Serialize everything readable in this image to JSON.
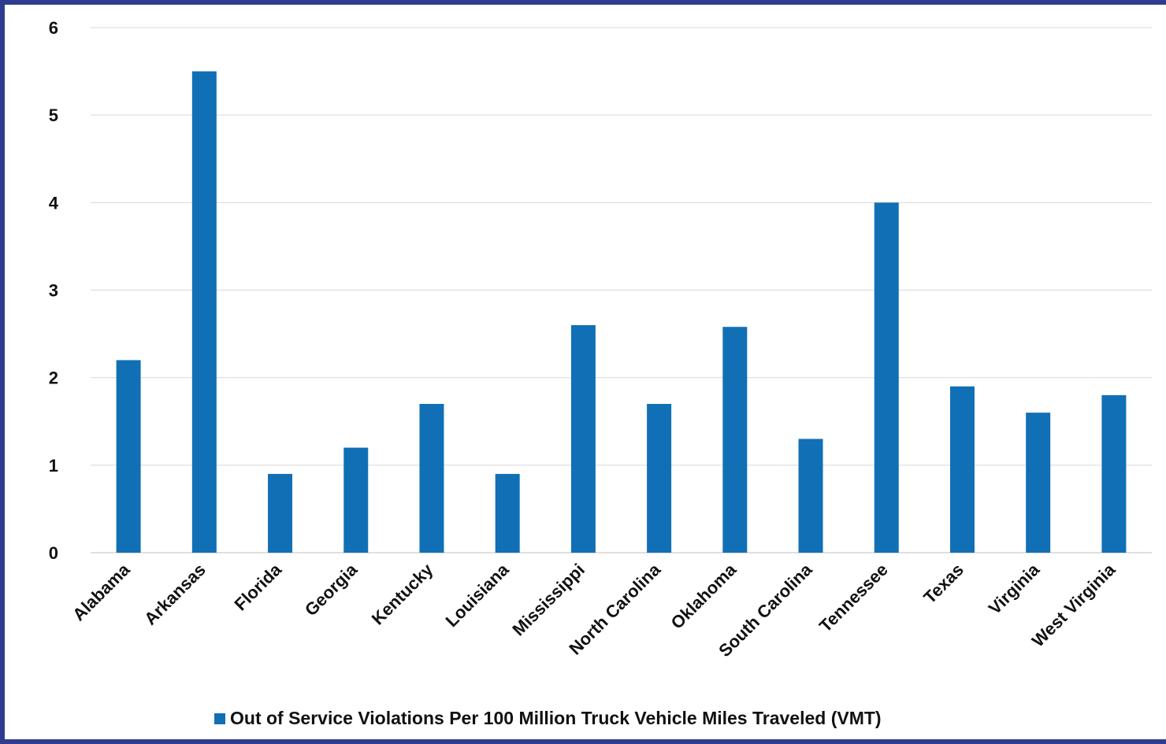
{
  "chart_data": {
    "type": "bar",
    "categories": [
      "Alabama",
      "Arkansas",
      "Florida",
      "Georgia",
      "Kentucky",
      "Louisiana",
      "Mississippi",
      "North Carolina",
      "Oklahoma",
      "South Carolina",
      "Tennessee",
      "Texas",
      "Virginia",
      "West Virginia"
    ],
    "series": [
      {
        "name": "Out of Service Violations Per 100 Million Truck Vehicle Miles Traveled (VMT)",
        "values": [
          2.2,
          5.5,
          0.9,
          1.2,
          1.7,
          0.9,
          2.6,
          1.7,
          2.58,
          1.3,
          4.0,
          1.9,
          1.6,
          1.8
        ]
      }
    ],
    "ylim": [
      0,
      6
    ],
    "yticks": [
      0,
      1,
      2,
      3,
      4,
      5,
      6
    ],
    "grid": true,
    "legend_position": "bottom",
    "bar_color": "#1170b5",
    "frame_color": "#2e3b8f"
  }
}
